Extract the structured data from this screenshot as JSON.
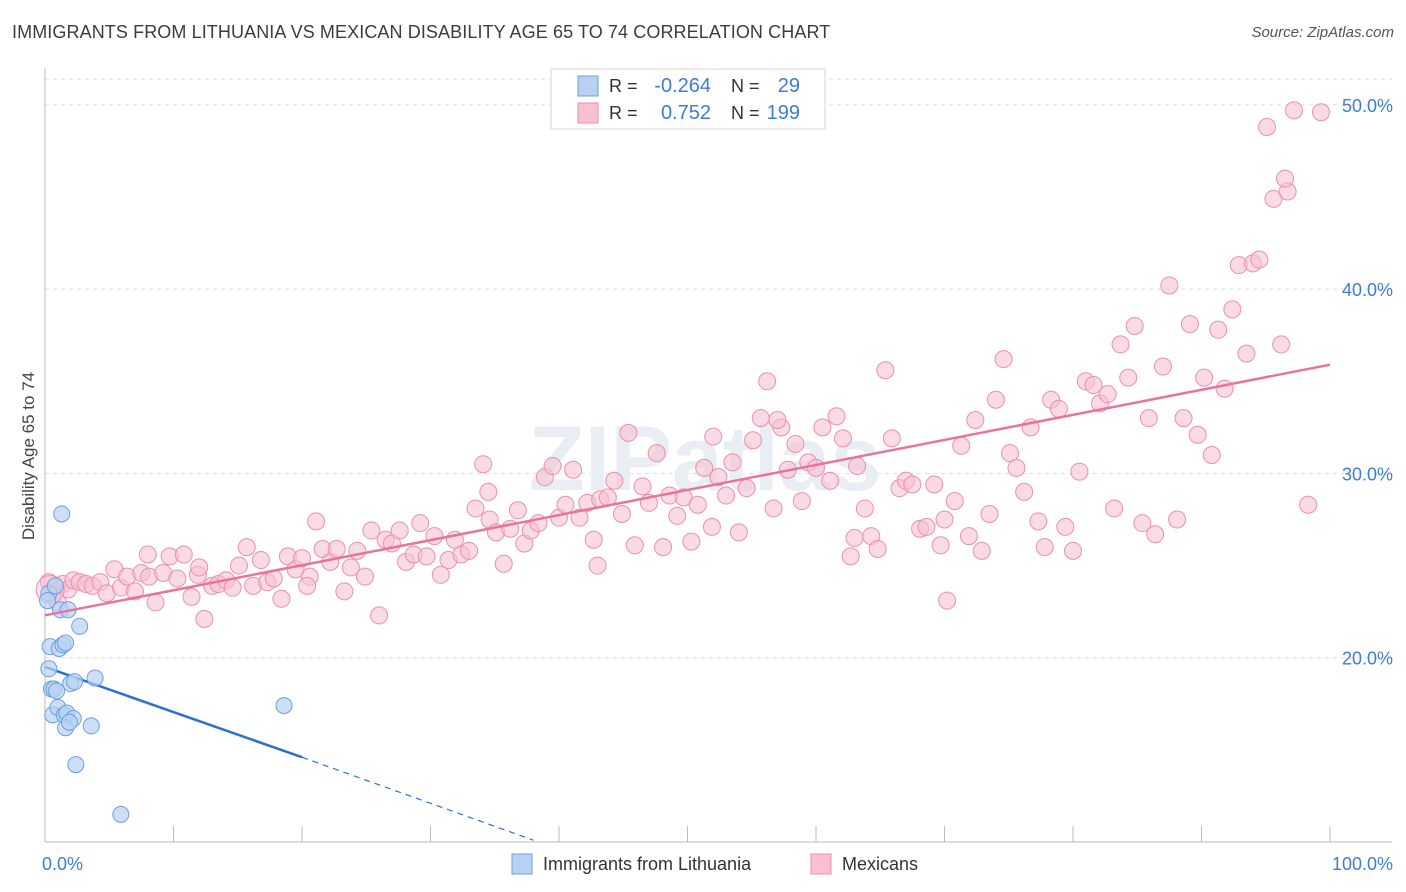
{
  "title": "IMMIGRANTS FROM LITHUANIA VS MEXICAN DISABILITY AGE 65 TO 74 CORRELATION CHART",
  "source": "Source: ZipAtlas.com",
  "watermark": "ZIPatlas",
  "colors": {
    "blue_fill": "#b8d1f3",
    "blue_stroke": "#6a9fe0",
    "blue_line": "#2f6fd0",
    "pink_fill": "#f7c1d2",
    "pink_stroke": "#ec8fae",
    "pink_line": "#e8749b",
    "tick_text": "#3d7dd8",
    "grid": "#dddddd"
  },
  "legend_top": [
    {
      "r_label": "R =",
      "r_value": "-0.264",
      "n_label": "N =",
      "n_value": "29"
    },
    {
      "r_label": "R =",
      "r_value": "0.752",
      "n_label": "N =",
      "n_value": "199"
    }
  ],
  "legend_bottom": [
    "Immigrants from Lithuania",
    "Mexicans"
  ],
  "chart_data": {
    "type": "scatter",
    "title": "IMMIGRANTS FROM LITHUANIA VS MEXICAN DISABILITY AGE 65 TO 74 CORRELATION CHART",
    "xlabel": "",
    "ylabel": "Disability Age 65 to 74",
    "xlim": [
      0,
      100
    ],
    "ylim": [
      10,
      52
    ],
    "x_tick_labels": [
      "0.0%",
      "100.0%"
    ],
    "y_ticks": [
      20,
      30,
      40,
      50
    ],
    "y_tick_labels": [
      "20.0%",
      "30.0%",
      "40.0%",
      "50.0%"
    ],
    "grid": true,
    "legend_position": "top-center",
    "series": [
      {
        "name": "Immigrants from Lithuania",
        "r": -0.264,
        "n": 29,
        "trend": {
          "x0": 0,
          "y0": 19.5,
          "x1": 20,
          "y1": 14.6,
          "dash_to_x": 38,
          "dash_to_y": 10.1
        },
        "points": [
          [
            0.3,
            23.5
          ],
          [
            0.8,
            23.9
          ],
          [
            1.2,
            22.6
          ],
          [
            1.8,
            22.6
          ],
          [
            2.7,
            21.7
          ],
          [
            0.4,
            20.6
          ],
          [
            1.1,
            20.5
          ],
          [
            1.4,
            20.7
          ],
          [
            1.6,
            20.8
          ],
          [
            3.9,
            18.9
          ],
          [
            0.5,
            18.3
          ],
          [
            0.7,
            18.3
          ],
          [
            2.0,
            18.6
          ],
          [
            2.3,
            18.7
          ],
          [
            0.6,
            16.9
          ],
          [
            1.0,
            17.3
          ],
          [
            1.5,
            16.9
          ],
          [
            1.7,
            17.0
          ],
          [
            2.2,
            16.7
          ],
          [
            3.6,
            16.3
          ],
          [
            1.6,
            16.2
          ],
          [
            2.4,
            14.2
          ],
          [
            1.3,
            27.8
          ],
          [
            18.6,
            17.4
          ],
          [
            5.9,
            11.5
          ],
          [
            0.2,
            23.1
          ],
          [
            0.9,
            18.2
          ],
          [
            1.9,
            16.5
          ],
          [
            0.3,
            19.4
          ]
        ]
      },
      {
        "name": "Mexicans",
        "r": 0.752,
        "n": 199,
        "trend": {
          "x0": 0,
          "y0": 22.3,
          "x1": 100,
          "y1": 35.9
        },
        "points": [
          [
            0.3,
            24.1
          ],
          [
            0.6,
            23.6
          ],
          [
            1.0,
            23.0
          ],
          [
            1.4,
            24.0
          ],
          [
            1.8,
            23.7
          ],
          [
            2.2,
            24.2
          ],
          [
            2.7,
            24.1
          ],
          [
            3.2,
            24.0
          ],
          [
            3.7,
            23.9
          ],
          [
            4.3,
            24.1
          ],
          [
            4.8,
            23.5
          ],
          [
            5.4,
            24.8
          ],
          [
            5.9,
            23.8
          ],
          [
            6.4,
            24.4
          ],
          [
            7.0,
            23.6
          ],
          [
            7.5,
            24.6
          ],
          [
            8.1,
            24.4
          ],
          [
            8.6,
            23.0
          ],
          [
            9.2,
            24.6
          ],
          [
            9.7,
            25.5
          ],
          [
            10.3,
            24.3
          ],
          [
            10.8,
            25.6
          ],
          [
            11.4,
            23.3
          ],
          [
            11.9,
            24.5
          ],
          [
            12.4,
            22.1
          ],
          [
            13.0,
            23.9
          ],
          [
            13.5,
            24.0
          ],
          [
            14.1,
            24.2
          ],
          [
            14.6,
            23.8
          ],
          [
            15.1,
            25.0
          ],
          [
            15.7,
            26.0
          ],
          [
            16.2,
            23.9
          ],
          [
            16.8,
            25.3
          ],
          [
            17.3,
            24.1
          ],
          [
            17.8,
            24.3
          ],
          [
            18.4,
            23.2
          ],
          [
            18.9,
            25.5
          ],
          [
            19.5,
            24.8
          ],
          [
            20.0,
            25.4
          ],
          [
            20.6,
            24.4
          ],
          [
            21.1,
            27.4
          ],
          [
            21.6,
            25.9
          ],
          [
            22.2,
            25.2
          ],
          [
            22.7,
            25.9
          ],
          [
            23.3,
            23.6
          ],
          [
            23.8,
            24.9
          ],
          [
            24.3,
            25.8
          ],
          [
            24.9,
            24.4
          ],
          [
            25.4,
            26.9
          ],
          [
            26.0,
            22.3
          ],
          [
            26.5,
            26.4
          ],
          [
            27.0,
            26.2
          ],
          [
            27.6,
            26.9
          ],
          [
            28.1,
            25.2
          ],
          [
            28.7,
            25.6
          ],
          [
            29.2,
            27.3
          ],
          [
            29.7,
            25.5
          ],
          [
            30.3,
            26.6
          ],
          [
            30.8,
            24.5
          ],
          [
            31.4,
            25.3
          ],
          [
            31.9,
            26.4
          ],
          [
            32.4,
            25.6
          ],
          [
            33.0,
            25.8
          ],
          [
            33.5,
            28.1
          ],
          [
            34.1,
            30.5
          ],
          [
            34.6,
            27.5
          ],
          [
            35.1,
            26.8
          ],
          [
            35.7,
            25.1
          ],
          [
            36.2,
            27.0
          ],
          [
            36.8,
            28.0
          ],
          [
            37.3,
            26.2
          ],
          [
            37.8,
            26.9
          ],
          [
            38.4,
            27.3
          ],
          [
            38.9,
            29.8
          ],
          [
            39.5,
            30.4
          ],
          [
            40.0,
            27.6
          ],
          [
            40.5,
            28.3
          ],
          [
            41.1,
            30.2
          ],
          [
            41.6,
            27.6
          ],
          [
            42.2,
            28.4
          ],
          [
            42.7,
            26.4
          ],
          [
            43.2,
            28.6
          ],
          [
            43.8,
            28.7
          ],
          [
            44.3,
            29.6
          ],
          [
            44.9,
            27.8
          ],
          [
            45.4,
            32.2
          ],
          [
            45.9,
            26.1
          ],
          [
            46.5,
            29.3
          ],
          [
            47.0,
            28.4
          ],
          [
            47.6,
            31.1
          ],
          [
            48.1,
            26.0
          ],
          [
            48.6,
            28.8
          ],
          [
            49.2,
            27.7
          ],
          [
            49.7,
            28.7
          ],
          [
            50.3,
            26.3
          ],
          [
            50.8,
            28.3
          ],
          [
            51.3,
            30.3
          ],
          [
            51.9,
            27.1
          ],
          [
            52.4,
            29.8
          ],
          [
            53.0,
            28.8
          ],
          [
            53.5,
            30.6
          ],
          [
            54.0,
            26.8
          ],
          [
            54.6,
            29.2
          ],
          [
            55.1,
            31.8
          ],
          [
            55.7,
            33.0
          ],
          [
            56.2,
            35.0
          ],
          [
            56.7,
            28.1
          ],
          [
            57.3,
            32.5
          ],
          [
            57.8,
            30.2
          ],
          [
            58.4,
            31.6
          ],
          [
            58.9,
            28.5
          ],
          [
            59.4,
            30.6
          ],
          [
            60.0,
            30.3
          ],
          [
            60.5,
            32.5
          ],
          [
            61.1,
            29.6
          ],
          [
            61.6,
            33.1
          ],
          [
            62.1,
            31.9
          ],
          [
            62.7,
            25.5
          ],
          [
            63.2,
            30.4
          ],
          [
            63.8,
            28.1
          ],
          [
            64.3,
            26.6
          ],
          [
            64.8,
            25.9
          ],
          [
            65.4,
            35.6
          ],
          [
            65.9,
            31.9
          ],
          [
            66.5,
            29.2
          ],
          [
            67.0,
            29.6
          ],
          [
            67.5,
            29.4
          ],
          [
            68.1,
            27.0
          ],
          [
            68.6,
            27.1
          ],
          [
            69.2,
            29.4
          ],
          [
            69.7,
            26.1
          ],
          [
            70.2,
            23.1
          ],
          [
            70.8,
            28.5
          ],
          [
            71.3,
            31.5
          ],
          [
            71.9,
            26.6
          ],
          [
            72.4,
            32.9
          ],
          [
            72.9,
            25.8
          ],
          [
            73.5,
            27.8
          ],
          [
            74.0,
            34.0
          ],
          [
            74.6,
            36.2
          ],
          [
            75.1,
            31.1
          ],
          [
            75.6,
            30.3
          ],
          [
            76.2,
            29.0
          ],
          [
            76.7,
            32.5
          ],
          [
            77.3,
            27.4
          ],
          [
            77.8,
            26.0
          ],
          [
            78.3,
            34.0
          ],
          [
            78.9,
            33.5
          ],
          [
            79.4,
            27.1
          ],
          [
            80.0,
            25.8
          ],
          [
            80.5,
            30.1
          ],
          [
            81.0,
            35.0
          ],
          [
            81.6,
            34.8
          ],
          [
            82.1,
            33.8
          ],
          [
            82.7,
            34.3
          ],
          [
            83.2,
            28.1
          ],
          [
            83.7,
            37.0
          ],
          [
            84.3,
            35.2
          ],
          [
            84.8,
            38.0
          ],
          [
            85.4,
            27.3
          ],
          [
            85.9,
            33.0
          ],
          [
            86.4,
            26.7
          ],
          [
            87.0,
            35.8
          ],
          [
            87.5,
            40.2
          ],
          [
            88.1,
            27.5
          ],
          [
            88.6,
            33.0
          ],
          [
            89.1,
            38.1
          ],
          [
            89.7,
            32.1
          ],
          [
            90.2,
            35.2
          ],
          [
            90.8,
            31.0
          ],
          [
            91.3,
            37.8
          ],
          [
            91.8,
            34.6
          ],
          [
            92.4,
            38.9
          ],
          [
            92.9,
            41.3
          ],
          [
            93.5,
            36.5
          ],
          [
            94.0,
            41.4
          ],
          [
            94.5,
            41.6
          ],
          [
            95.1,
            48.8
          ],
          [
            95.6,
            44.9
          ],
          [
            96.2,
            37.0
          ],
          [
            96.7,
            45.3
          ],
          [
            97.2,
            49.7
          ],
          [
            98.3,
            28.3
          ],
          [
            99.3,
            49.6
          ],
          [
            96.5,
            46.0
          ],
          [
            63.0,
            26.5
          ],
          [
            43.0,
            25.0
          ],
          [
            20.4,
            23.9
          ],
          [
            12.0,
            24.9
          ],
          [
            70.0,
            27.5
          ],
          [
            52.0,
            32.0
          ],
          [
            34.5,
            29.0
          ],
          [
            8.0,
            25.6
          ],
          [
            57.0,
            32.9
          ]
        ]
      }
    ]
  }
}
